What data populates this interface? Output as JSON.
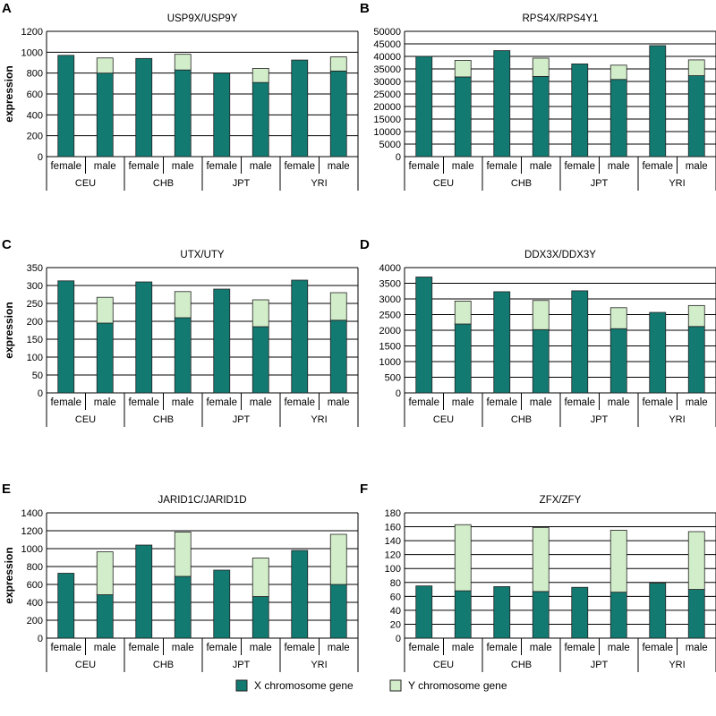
{
  "colors": {
    "x_gene": "#137a72",
    "y_gene": "#d2edc9",
    "grid": "#000000",
    "outline": "#222222"
  },
  "legend": {
    "x_gene": "X chromosome  gene",
    "y_gene": "Y chromosome gene"
  },
  "chart_data": [
    {
      "type": "bar",
      "stacked": true,
      "letter": "A",
      "title": "USP9X/USP9Y",
      "ylabel": "expression",
      "ylim": [
        0,
        1200
      ],
      "yticks": [
        "0",
        "200",
        "400",
        "600",
        "800",
        "1000",
        "1200"
      ],
      "groups": [
        "CEU",
        "CHB",
        "JPT",
        "YRI"
      ],
      "subcategories": [
        "female",
        "male"
      ],
      "series": [
        {
          "name": "X chromosome  gene",
          "values": [
            970,
            800,
            940,
            830,
            800,
            710,
            925,
            820
          ]
        },
        {
          "name": "Y chromosome gene",
          "values": [
            0,
            145,
            0,
            150,
            0,
            135,
            0,
            135
          ]
        }
      ]
    },
    {
      "type": "bar",
      "stacked": true,
      "letter": "B",
      "title": "RPS4X/RPS4Y1",
      "ylabel": "",
      "ylim": [
        0,
        50000
      ],
      "yticks": [
        "0",
        "5000",
        "10000",
        "15000",
        "20000",
        "25000",
        "30000",
        "35000",
        "40000",
        "45000",
        "50000"
      ],
      "groups": [
        "CEU",
        "CHB",
        "JPT",
        "YRI"
      ],
      "subcategories": [
        "female",
        "male"
      ],
      "series": [
        {
          "name": "X chromosome  gene",
          "values": [
            40000,
            31800,
            42300,
            32000,
            37000,
            30800,
            44300,
            32300
          ]
        },
        {
          "name": "Y chromosome gene",
          "values": [
            0,
            6600,
            0,
            7300,
            0,
            5700,
            0,
            6300
          ]
        }
      ]
    },
    {
      "type": "bar",
      "stacked": true,
      "letter": "C",
      "title": "UTX/UTY",
      "ylabel": "expression",
      "ylim": [
        0,
        350
      ],
      "yticks": [
        "0",
        "50",
        "100",
        "150",
        "200",
        "250",
        "300",
        "350"
      ],
      "groups": [
        "CEU",
        "CHB",
        "JPT",
        "YRI"
      ],
      "subcategories": [
        "female",
        "male"
      ],
      "series": [
        {
          "name": "X chromosome  gene",
          "values": [
            313,
            195,
            310,
            210,
            290,
            185,
            315,
            203
          ]
        },
        {
          "name": "Y chromosome gene",
          "values": [
            0,
            72,
            0,
            73,
            0,
            75,
            0,
            77
          ]
        }
      ]
    },
    {
      "type": "bar",
      "stacked": true,
      "letter": "D",
      "title": "DDX3X/DDX3Y",
      "ylabel": "",
      "ylim": [
        0,
        4000
      ],
      "yticks": [
        "0",
        "500",
        "1000",
        "1500",
        "2000",
        "2500",
        "3000",
        "3500",
        "4000"
      ],
      "groups": [
        "CEU",
        "CHB",
        "JPT",
        "YRI"
      ],
      "subcategories": [
        "female",
        "male"
      ],
      "series": [
        {
          "name": "X chromosome  gene",
          "values": [
            3700,
            2200,
            3230,
            2020,
            3260,
            2050,
            2570,
            2120
          ]
        },
        {
          "name": "Y chromosome gene",
          "values": [
            0,
            730,
            0,
            930,
            0,
            670,
            0,
            670
          ]
        }
      ]
    },
    {
      "type": "bar",
      "stacked": true,
      "letter": "E",
      "title": "JARID1C/JARID1D",
      "ylabel": "expression",
      "ylim": [
        0,
        1400
      ],
      "yticks": [
        "0",
        "200",
        "400",
        "600",
        "800",
        "1000",
        "1200",
        "1400"
      ],
      "groups": [
        "CEU",
        "CHB",
        "JPT",
        "YRI"
      ],
      "subcategories": [
        "female",
        "male"
      ],
      "series": [
        {
          "name": "X chromosome  gene",
          "values": [
            725,
            485,
            1040,
            690,
            760,
            465,
            980,
            600
          ]
        },
        {
          "name": "Y chromosome gene",
          "values": [
            0,
            480,
            0,
            495,
            0,
            430,
            0,
            560
          ]
        }
      ]
    },
    {
      "type": "bar",
      "stacked": true,
      "letter": "F",
      "title": "ZFX/ZFY",
      "ylabel": "",
      "ylim": [
        0,
        180
      ],
      "yticks": [
        "0",
        "20",
        "40",
        "60",
        "80",
        "100",
        "120",
        "140",
        "160",
        "180"
      ],
      "groups": [
        "CEU",
        "CHB",
        "JPT",
        "YRI"
      ],
      "subcategories": [
        "female",
        "male"
      ],
      "series": [
        {
          "name": "X chromosome  gene",
          "values": [
            75,
            68,
            74,
            67,
            73,
            66,
            79,
            70
          ]
        },
        {
          "name": "Y chromosome gene",
          "values": [
            0,
            95,
            0,
            92,
            0,
            89,
            0,
            83
          ]
        }
      ]
    }
  ]
}
